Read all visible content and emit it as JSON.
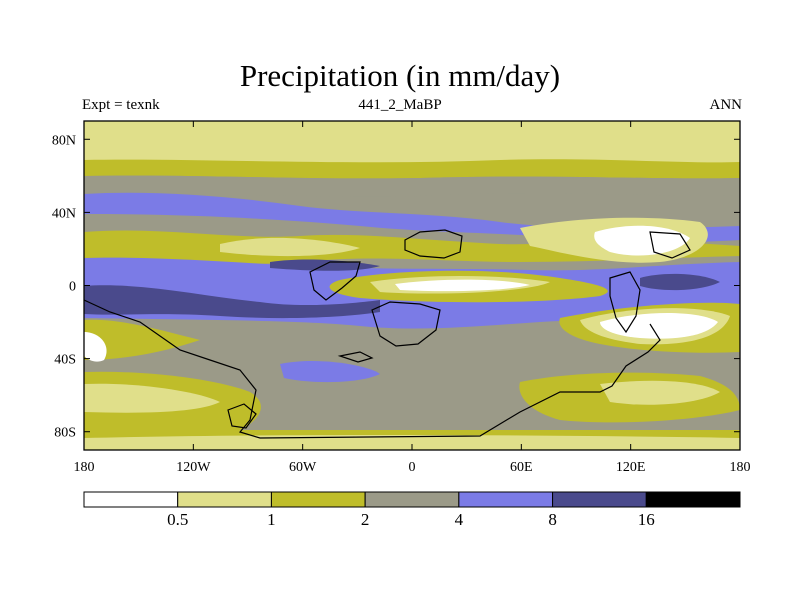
{
  "title": "Precipitation (in mm/day)",
  "subtitle_left": "Expt = texnk",
  "subtitle_center": "441_2_MaBP",
  "subtitle_right": "ANN",
  "map": {
    "lon_range": [
      -180,
      180
    ],
    "lat_range": [
      -90,
      90
    ],
    "lat_ticks": [
      {
        "value": 80,
        "label": "80N"
      },
      {
        "value": 40,
        "label": "40N"
      },
      {
        "value": 0,
        "label": "0"
      },
      {
        "value": -40,
        "label": "40S"
      },
      {
        "value": -80,
        "label": "80S"
      }
    ],
    "lon_ticks": [
      {
        "value": -180,
        "label": "180"
      },
      {
        "value": -120,
        "label": "120W"
      },
      {
        "value": -60,
        "label": "60W"
      },
      {
        "value": 0,
        "label": "0"
      },
      {
        "value": 60,
        "label": "60E"
      },
      {
        "value": 120,
        "label": "120E"
      },
      {
        "value": 180,
        "label": "180"
      }
    ]
  },
  "colorbar": {
    "colors": [
      "#ffffff",
      "#e0df8a",
      "#bfbd2a",
      "#9b9a88",
      "#7b7be6",
      "#4a4a8c",
      "#000000"
    ],
    "labels": [
      "0.5",
      "1",
      "2",
      "4",
      "8",
      "16"
    ]
  }
}
